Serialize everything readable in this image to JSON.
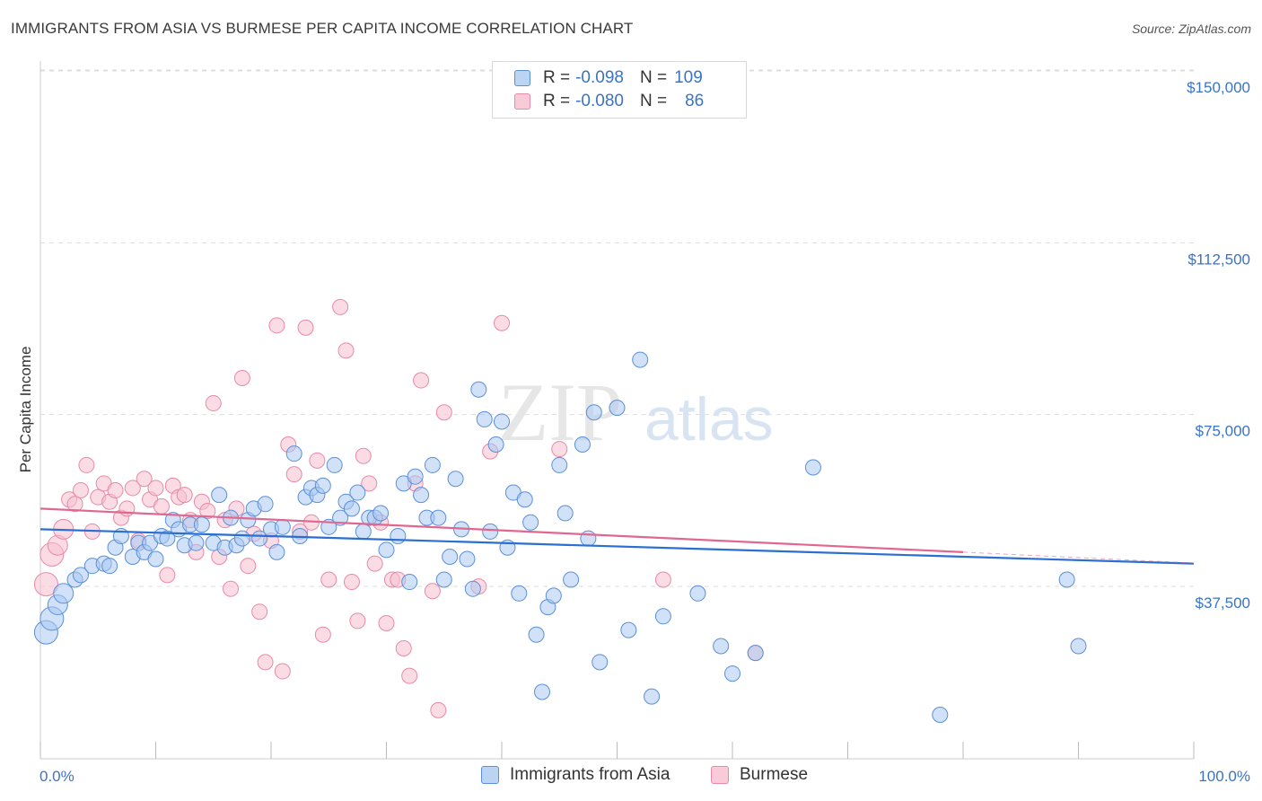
{
  "title": "IMMIGRANTS FROM ASIA VS BURMESE PER CAPITA INCOME CORRELATION CHART",
  "source": "Source: ZipAtlas.com",
  "watermark": {
    "zip": "ZIP",
    "atlas": "atlas"
  },
  "colors": {
    "blue_fill": "#a9c8f2",
    "blue_stroke": "#5b90d8",
    "blue_line": "#2b6fd0",
    "pink_fill": "#f7bfd0",
    "pink_stroke": "#e88aa8",
    "pink_line": "#e06890",
    "tick_text": "#3b73c4",
    "grid": "#dddddd"
  },
  "legend": {
    "rows": [
      {
        "r_label": "R =",
        "r_value": "-0.098",
        "n_label": "N =",
        "n_value": "109"
      },
      {
        "r_label": "R =",
        "r_value": "-0.080",
        "n_label": "N =",
        "n_value": "86"
      }
    ]
  },
  "chart_data": {
    "type": "scatter",
    "ylabel": "Per Capita Income",
    "xlim": [
      0,
      100
    ],
    "ylim": [
      5000,
      155000
    ],
    "x_tick_labels": [
      "0.0%",
      "100.0%"
    ],
    "y_ticks": [
      37500,
      75000,
      112500,
      150000
    ],
    "y_tick_labels": [
      "$37,500",
      "$75,000",
      "$112,500",
      "$150,000"
    ],
    "grid": true,
    "legend_position": "top-center",
    "series": [
      {
        "name": "Immigrants from Asia",
        "trend": {
          "x": [
            0,
            100
          ],
          "y": [
            53500,
            46000
          ]
        },
        "points": [
          [
            0.5,
            31000
          ],
          [
            1,
            34000
          ],
          [
            1.5,
            37000
          ],
          [
            2,
            39500
          ],
          [
            3,
            42500
          ],
          [
            3.5,
            43500
          ],
          [
            4.5,
            45500
          ],
          [
            5.5,
            46000
          ],
          [
            6,
            45500
          ],
          [
            6.5,
            49500
          ],
          [
            7,
            52000
          ],
          [
            8,
            47500
          ],
          [
            8.5,
            50500
          ],
          [
            9,
            48500
          ],
          [
            9.5,
            50500
          ],
          [
            10,
            47000
          ],
          [
            10.5,
            52000
          ],
          [
            11,
            51500
          ],
          [
            11.5,
            55500
          ],
          [
            12,
            53500
          ],
          [
            12.5,
            50000
          ],
          [
            13,
            54500
          ],
          [
            13.5,
            50500
          ],
          [
            14,
            54500
          ],
          [
            15,
            50500
          ],
          [
            15.5,
            61000
          ],
          [
            16,
            49500
          ],
          [
            16.5,
            56000
          ],
          [
            17,
            50000
          ],
          [
            17.5,
            51500
          ],
          [
            18,
            55500
          ],
          [
            18.5,
            58000
          ],
          [
            19,
            51500
          ],
          [
            19.5,
            59000
          ],
          [
            20,
            53500
          ],
          [
            20.5,
            48500
          ],
          [
            21,
            54000
          ],
          [
            22,
            70000
          ],
          [
            22.5,
            52000
          ],
          [
            23,
            60500
          ],
          [
            23.5,
            62500
          ],
          [
            24,
            61000
          ],
          [
            24.5,
            63000
          ],
          [
            25,
            54000
          ],
          [
            25.5,
            67500
          ],
          [
            26,
            56000
          ],
          [
            26.5,
            59500
          ],
          [
            27,
            58000
          ],
          [
            27.5,
            61500
          ],
          [
            28,
            53000
          ],
          [
            28.5,
            56000
          ],
          [
            29,
            56000
          ],
          [
            29.5,
            57000
          ],
          [
            30,
            49000
          ],
          [
            31,
            52000
          ],
          [
            31.5,
            63500
          ],
          [
            32,
            42000
          ],
          [
            32.5,
            65000
          ],
          [
            33,
            61000
          ],
          [
            33.5,
            56000
          ],
          [
            34,
            67500
          ],
          [
            34.5,
            56000
          ],
          [
            35,
            42500
          ],
          [
            35.5,
            47500
          ],
          [
            36,
            64500
          ],
          [
            36.5,
            53500
          ],
          [
            37,
            47000
          ],
          [
            37.5,
            40500
          ],
          [
            38,
            84000
          ],
          [
            38.5,
            77500
          ],
          [
            39,
            53000
          ],
          [
            39.5,
            72000
          ],
          [
            40,
            77000
          ],
          [
            40.5,
            49500
          ],
          [
            41,
            61500
          ],
          [
            41.5,
            39500
          ],
          [
            42,
            60000
          ],
          [
            42.5,
            55000
          ],
          [
            43,
            30500
          ],
          [
            43.5,
            18000
          ],
          [
            44,
            36500
          ],
          [
            44.5,
            39000
          ],
          [
            45,
            67500
          ],
          [
            45.5,
            57000
          ],
          [
            46,
            42500
          ],
          [
            47,
            72000
          ],
          [
            47.5,
            51500
          ],
          [
            48,
            79000
          ],
          [
            48.5,
            24500
          ],
          [
            50,
            80000
          ],
          [
            51,
            31500
          ],
          [
            52,
            90500
          ],
          [
            53,
            17000
          ],
          [
            54,
            34500
          ],
          [
            57,
            39500
          ],
          [
            59,
            28000
          ],
          [
            60,
            22000
          ],
          [
            62,
            26500
          ],
          [
            67,
            67000
          ],
          [
            78,
            13000
          ],
          [
            89,
            42500
          ],
          [
            90,
            28000
          ]
        ]
      },
      {
        "name": "Burmese",
        "trend": {
          "x": [
            0,
            80
          ],
          "y": [
            58000,
            48500
          ]
        },
        "points": [
          [
            0.5,
            41500
          ],
          [
            1,
            48000
          ],
          [
            1.5,
            50000
          ],
          [
            2,
            53500
          ],
          [
            2.5,
            60000
          ],
          [
            3,
            59000
          ],
          [
            3.5,
            62000
          ],
          [
            4,
            67500
          ],
          [
            4.5,
            53000
          ],
          [
            5,
            60500
          ],
          [
            5.5,
            63500
          ],
          [
            6,
            59500
          ],
          [
            6.5,
            62000
          ],
          [
            7,
            56000
          ],
          [
            7.5,
            58000
          ],
          [
            8,
            62500
          ],
          [
            8.5,
            51000
          ],
          [
            9,
            64500
          ],
          [
            9.5,
            60000
          ],
          [
            10,
            62500
          ],
          [
            10.5,
            58500
          ],
          [
            11,
            43500
          ],
          [
            11.5,
            63000
          ],
          [
            12,
            60500
          ],
          [
            12.5,
            61000
          ],
          [
            13,
            55500
          ],
          [
            13.5,
            48500
          ],
          [
            14,
            59500
          ],
          [
            14.5,
            57500
          ],
          [
            15,
            81000
          ],
          [
            15.5,
            47500
          ],
          [
            16,
            55500
          ],
          [
            16.5,
            40500
          ],
          [
            17,
            58000
          ],
          [
            17.5,
            86500
          ],
          [
            18,
            45500
          ],
          [
            18.5,
            52500
          ],
          [
            19,
            35500
          ],
          [
            19.5,
            24500
          ],
          [
            20,
            51000
          ],
          [
            20.5,
            98000
          ],
          [
            21,
            22500
          ],
          [
            21.5,
            72000
          ],
          [
            22,
            65500
          ],
          [
            22.5,
            53000
          ],
          [
            23,
            97500
          ],
          [
            23.5,
            55000
          ],
          [
            24,
            68500
          ],
          [
            24.5,
            30500
          ],
          [
            25,
            42500
          ],
          [
            26,
            102000
          ],
          [
            26.5,
            92500
          ],
          [
            27,
            42000
          ],
          [
            27.5,
            33500
          ],
          [
            28,
            69500
          ],
          [
            28.5,
            63500
          ],
          [
            29,
            46000
          ],
          [
            29.5,
            55000
          ],
          [
            30,
            33000
          ],
          [
            30.5,
            42500
          ],
          [
            31,
            42500
          ],
          [
            31.5,
            27500
          ],
          [
            32,
            21500
          ],
          [
            32.5,
            63500
          ],
          [
            33,
            86000
          ],
          [
            34,
            40000
          ],
          [
            34.5,
            14000
          ],
          [
            35,
            79000
          ],
          [
            38,
            41000
          ],
          [
            39,
            70500
          ],
          [
            40,
            98500
          ],
          [
            45,
            71000
          ],
          [
            54,
            42500
          ],
          [
            62,
            26500
          ]
        ]
      }
    ]
  },
  "bottom_legend": {
    "items": [
      {
        "label": "Immigrants from Asia"
      },
      {
        "label": "Burmese"
      }
    ]
  }
}
